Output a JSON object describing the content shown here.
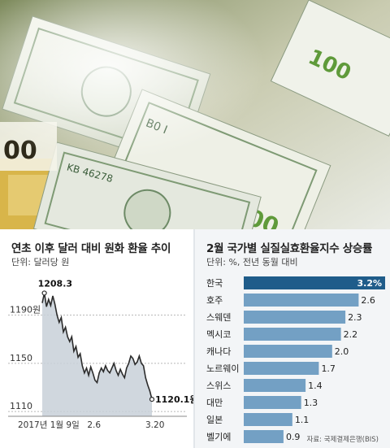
{
  "line_chart": {
    "title": "연초 이후 달러 대비 원화 환율 추이",
    "unit": "단위: 달러당 원"
  },
  "bar_chart": {
    "title": "2월 국가별 실질실효환율지수 상승률",
    "unit": "단위: %, 전년 동월 대비",
    "source": "자료: 국제결제은행(BIS)"
  },
  "colors": {
    "area_fill": "#c8d0d8",
    "line": "#2b2b2b",
    "highlight_bar": "#1f5c8a",
    "bar": "#73a0c4"
  },
  "chart_data": [
    {
      "type": "area",
      "title": "연초 이후 달러 대비 원화 환율 추이",
      "unit": "단위: 달러당 원",
      "y_ticks": [
        {
          "value": 1190,
          "label": "1190원"
        },
        {
          "value": 1150,
          "label": "1150"
        },
        {
          "value": 1110,
          "label": "1110"
        }
      ],
      "x_ticks": [
        "2017년 1월 9일",
        "2.6",
        "3.20"
      ],
      "ylim": [
        1106,
        1214
      ],
      "annotations": [
        {
          "label": "1208.3",
          "value": 1208.3
        },
        {
          "label": "1120.1원",
          "value": 1120.1
        }
      ],
      "values": [
        1200,
        1208.3,
        1197,
        1203,
        1198,
        1206,
        1199,
        1190,
        1184,
        1188,
        1176,
        1180,
        1172,
        1168,
        1172,
        1160,
        1164,
        1155,
        1158,
        1148,
        1142,
        1146,
        1140,
        1147,
        1142,
        1136,
        1134,
        1142,
        1146,
        1143,
        1148,
        1144,
        1142,
        1146,
        1150,
        1144,
        1140,
        1145,
        1141,
        1138,
        1146,
        1150,
        1156,
        1154,
        1149,
        1151,
        1156,
        1150,
        1148,
        1138,
        1132,
        1127,
        1120.1
      ]
    },
    {
      "type": "bar",
      "orientation": "horizontal",
      "title": "2월 국가별 실질실효환율지수 상승률",
      "unit": "단위: %, 전년 동월 대비",
      "categories": [
        "한국",
        "호주",
        "스웨덴",
        "멕시코",
        "캐나다",
        "노르웨이",
        "스위스",
        "대만",
        "일본",
        "벨기에"
      ],
      "values": [
        3.2,
        2.6,
        2.3,
        2.2,
        2.0,
        1.7,
        1.4,
        1.3,
        1.1,
        0.9
      ],
      "value_labels": [
        "3.2%",
        "2.6",
        "2.3",
        "2.2",
        "2.0",
        "1.7",
        "1.4",
        "1.3",
        "1.1",
        "0.9"
      ],
      "highlight": "한국",
      "source": "자료: 국제결제은행(BIS)"
    }
  ]
}
